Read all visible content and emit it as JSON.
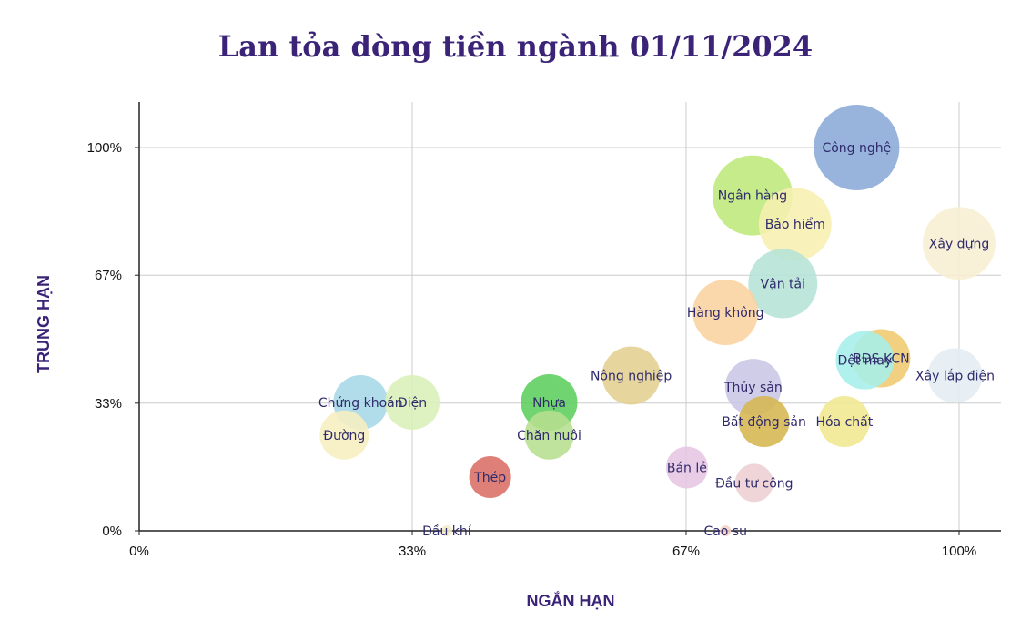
{
  "chart_data": {
    "type": "scatter",
    "title": "Lan tỏa dòng tiền ngành 01/11/2024",
    "xlabel": "NGẮN HẠN",
    "ylabel": "TRUNG HẠN",
    "xlim": [
      0,
      1.05
    ],
    "ylim": [
      0,
      1.12
    ],
    "x_ticks": [
      {
        "value": 0,
        "label": "0%"
      },
      {
        "value": 0.333,
        "label": "33%"
      },
      {
        "value": 0.667,
        "label": "67%"
      },
      {
        "value": 1.0,
        "label": "100%"
      }
    ],
    "y_ticks": [
      {
        "value": 0,
        "label": "0%"
      },
      {
        "value": 0.333,
        "label": "33%"
      },
      {
        "value": 0.667,
        "label": "67%"
      },
      {
        "value": 1.0,
        "label": "100%"
      }
    ],
    "grid": true,
    "points": [
      {
        "name": "Công nghệ",
        "x": 0.875,
        "y": 1.0,
        "size": 47,
        "color": "#8aaad8"
      },
      {
        "name": "Ngân hàng",
        "x": 0.748,
        "y": 0.875,
        "size": 44,
        "color": "#bde87a"
      },
      {
        "name": "Bảo hiểm",
        "x": 0.8,
        "y": 0.8,
        "size": 40,
        "color": "#f7efb0"
      },
      {
        "name": "Xây dựng",
        "x": 1.0,
        "y": 0.75,
        "size": 40,
        "color": "#f8efd2"
      },
      {
        "name": "Vận tải",
        "x": 0.785,
        "y": 0.645,
        "size": 38,
        "color": "#b5e2d6"
      },
      {
        "name": "Hàng không",
        "x": 0.715,
        "y": 0.57,
        "size": 36,
        "color": "#fad3a1"
      },
      {
        "name": "BĐS KCN",
        "x": 0.905,
        "y": 0.45,
        "size": 32,
        "color": "#f0ca70"
      },
      {
        "name": "Dệt may",
        "x": 0.885,
        "y": 0.445,
        "size": 32,
        "color": "#a6efea"
      },
      {
        "name": "Xây lắp điện",
        "x": 0.995,
        "y": 0.405,
        "size": 30,
        "color": "#e4edf2"
      },
      {
        "name": "Nông nghiệp",
        "x": 0.6,
        "y": 0.405,
        "size": 32,
        "color": "#e3cf8e"
      },
      {
        "name": "Thủy sản",
        "x": 0.749,
        "y": 0.375,
        "size": 31,
        "color": "#c9c6e6"
      },
      {
        "name": "Chứng khoán",
        "x": 0.27,
        "y": 0.335,
        "size": 30,
        "color": "#a6d7e6"
      },
      {
        "name": "Điện",
        "x": 0.333,
        "y": 0.335,
        "size": 30,
        "color": "#daf0b8"
      },
      {
        "name": "Nhựa",
        "x": 0.5,
        "y": 0.335,
        "size": 31,
        "color": "#5ccf5c"
      },
      {
        "name": "Bất động sản",
        "x": 0.762,
        "y": 0.285,
        "size": 28,
        "color": "#d6b650"
      },
      {
        "name": "Hóa chất",
        "x": 0.86,
        "y": 0.285,
        "size": 28,
        "color": "#f0e890"
      },
      {
        "name": "Chăn nuôi",
        "x": 0.5,
        "y": 0.25,
        "size": 27,
        "color": "#b6df8e"
      },
      {
        "name": "Đường",
        "x": 0.25,
        "y": 0.25,
        "size": 27,
        "color": "#f7efbf"
      },
      {
        "name": "Thép",
        "x": 0.428,
        "y": 0.14,
        "size": 23,
        "color": "#d96e64"
      },
      {
        "name": "Bán lẻ",
        "x": 0.668,
        "y": 0.165,
        "size": 23,
        "color": "#e6c6e4"
      },
      {
        "name": "Đầu tư công",
        "x": 0.75,
        "y": 0.125,
        "size": 21,
        "color": "#edcfd2"
      },
      {
        "name": "Dầu khí",
        "x": 0.375,
        "y": 0.0,
        "size": 6,
        "color": "#f3ecc8"
      },
      {
        "name": "Cao su",
        "x": 0.715,
        "y": 0.0,
        "size": 6,
        "color": "#f4d3c4"
      }
    ]
  }
}
